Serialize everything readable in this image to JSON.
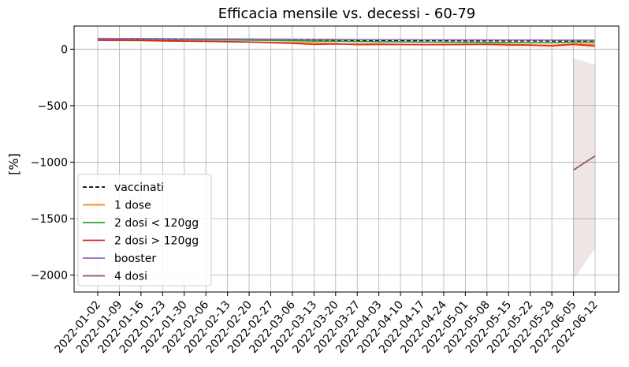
{
  "chart_data": {
    "type": "line",
    "title": "Efficacia mensile vs. decessi - 60-79",
    "xlabel": "",
    "ylabel": "[%]",
    "ylim": [
      -2150,
      205
    ],
    "yticks": [
      0,
      -500,
      -1000,
      -1500,
      -2000
    ],
    "ytick_labels": [
      "0",
      "−500",
      "−1000",
      "−1500",
      "−2000"
    ],
    "grid": true,
    "legend": "lower-left",
    "categories": [
      "2022-01-02",
      "2022-01-09",
      "2022-01-16",
      "2022-01-23",
      "2022-01-30",
      "2022-02-06",
      "2022-02-13",
      "2022-02-20",
      "2022-02-27",
      "2022-03-06",
      "2022-03-13",
      "2022-03-20",
      "2022-03-27",
      "2022-04-03",
      "2022-04-10",
      "2022-04-17",
      "2022-04-24",
      "2022-05-01",
      "2022-05-08",
      "2022-05-15",
      "2022-05-22",
      "2022-05-29",
      "2022-06-05",
      "2022-06-12"
    ],
    "series": [
      {
        "name": "vaccinati",
        "color": "#000000",
        "dash": true,
        "values": [
          88,
          87,
          86,
          86,
          85,
          84,
          84,
          83,
          82,
          81,
          80,
          79,
          78,
          77,
          77,
          76,
          76,
          75,
          75,
          74,
          74,
          73,
          73,
          74
        ]
      },
      {
        "name": "1 dose",
        "color": "#ff7f0e",
        "dash": false,
        "values": [
          78,
          77,
          76,
          72,
          70,
          69,
          67,
          64,
          61,
          58,
          56,
          50,
          38,
          40,
          40,
          40,
          39,
          40,
          41,
          38,
          36,
          33,
          45,
          42
        ]
      },
      {
        "name": "2 dosi < 120gg",
        "color": "#2ca02c",
        "dash": false,
        "values": [
          92,
          91,
          90,
          88,
          86,
          84,
          82,
          80,
          78,
          75,
          72,
          70,
          68,
          66,
          65,
          63,
          62,
          61,
          60,
          59,
          58,
          58,
          62,
          62
        ]
      },
      {
        "name": "2 dosi > 120gg",
        "color": "#d62728",
        "dash": false,
        "values": [
          80,
          79,
          78,
          75,
          72,
          70,
          66,
          63,
          58,
          52,
          42,
          46,
          44,
          45,
          42,
          40,
          41,
          42,
          44,
          39,
          37,
          30,
          42,
          28
        ]
      },
      {
        "name": "booster",
        "color": "#9467bd",
        "dash": false,
        "values": [
          95,
          94,
          94,
          93,
          92,
          91,
          91,
          90,
          89,
          88,
          87,
          86,
          85,
          84,
          84,
          83,
          83,
          82,
          82,
          81,
          81,
          80,
          80,
          79
        ]
      },
      {
        "name": "4 dosi",
        "color": "#8c564b",
        "dash": false,
        "values": [
          null,
          null,
          null,
          null,
          null,
          null,
          null,
          null,
          null,
          null,
          null,
          null,
          null,
          null,
          null,
          null,
          null,
          null,
          null,
          null,
          null,
          null,
          -1070,
          -945
        ]
      }
    ],
    "bands": [
      {
        "series": "4 dosi",
        "color": "#8c564b",
        "x_index": [
          22,
          23
        ],
        "lower": [
          -2040,
          -1760
        ],
        "upper": [
          -80,
          -140
        ]
      },
      {
        "series": "1 dose",
        "color": "#ff7f0e",
        "x_index": [
          18,
          19,
          20,
          21,
          22,
          23
        ],
        "lower": [
          20,
          15,
          10,
          5,
          10,
          8
        ],
        "upper": [
          60,
          58,
          55,
          52,
          62,
          60
        ]
      }
    ]
  }
}
